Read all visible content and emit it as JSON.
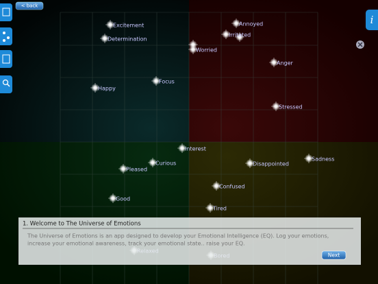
{
  "toolbar": {
    "back": "< back",
    "info": "i"
  },
  "emotions": [
    {
      "label": "Excitement"
    },
    {
      "label": "Determination"
    },
    {
      "label": "Annoyed"
    },
    {
      "label": "Irritated"
    },
    {
      "label": "Worried"
    },
    {
      "label": "Anger"
    },
    {
      "label": "Focus"
    },
    {
      "label": "Happy"
    },
    {
      "label": "Stressed"
    },
    {
      "label": "Interest"
    },
    {
      "label": "Sadness"
    },
    {
      "label": "Curious"
    },
    {
      "label": "Pleased"
    },
    {
      "label": "Disappointed"
    },
    {
      "label": "Confused"
    },
    {
      "label": "Good"
    },
    {
      "label": "Tired"
    },
    {
      "label": "Relaxed"
    },
    {
      "label": "Bored"
    }
  ],
  "dialog": {
    "title": "1. Welcome to The Universe of Emotions",
    "body": [
      "The Universe of Emotions is an app designed to develop your Emotional Intelligence (EQ). Log your emotions,",
      "increase your emotional awareness, track your emotional state.. raise your EQ."
    ],
    "button": "Next"
  }
}
